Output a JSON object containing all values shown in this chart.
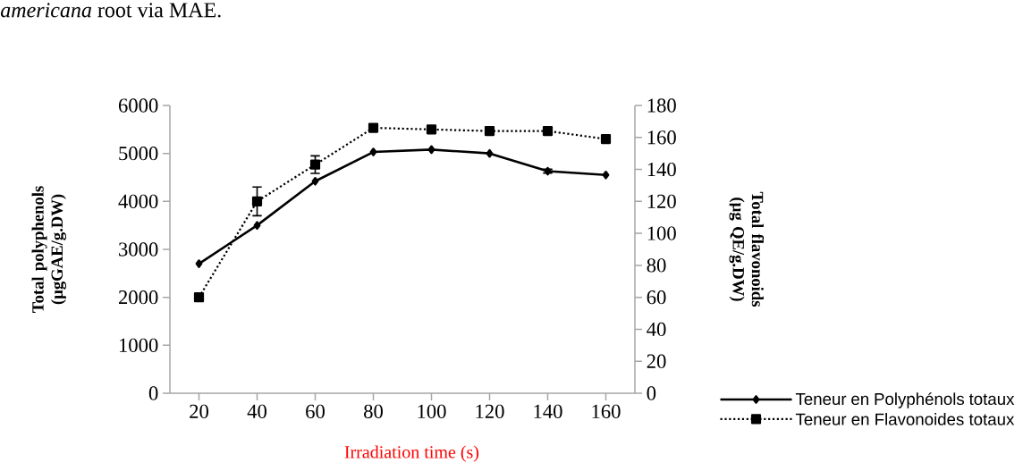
{
  "chart_data": {
    "type": "line",
    "xlabel": "Irradiation time (s)",
    "ylabel": "Total polyphenols (µgGAE/g.DW)",
    "y2label": "Total flavonoids (µg QE/g.DW)",
    "annotations": [
      "*americana* root via MAE."
    ],
    "categories": [
      "20",
      "40",
      "60",
      "80",
      "100",
      "120",
      "140",
      "160"
    ],
    "series": [
      {
        "name": "Teneur en Polyphénols totaux",
        "color": "#000000",
        "marker": "diamond",
        "line_style": "solid",
        "values": [
          2700,
          3500,
          4420,
          5030,
          5080,
          5000,
          4630,
          4550
        ],
        "errors": [
          null,
          null,
          null,
          null,
          null,
          null,
          40,
          null
        ]
      },
      {
        "name": "Teneur en Flavonoides totaux",
        "color": "#000000",
        "marker": "square",
        "line_style": "dotted",
        "axis": "y2",
        "values": [
          60,
          120,
          143,
          166,
          165,
          164,
          164,
          159
        ],
        "errors": [
          null,
          9,
          5.5,
          null,
          null,
          null,
          null,
          null
        ]
      }
    ],
    "ylim": [
      0,
      6000
    ],
    "yticks": [
      0,
      1000,
      2000,
      3000,
      4000,
      5000,
      6000
    ],
    "y2lim": [
      0,
      180
    ],
    "y2ticks": [
      0,
      20,
      40,
      60,
      80,
      100,
      120,
      140,
      160,
      180
    ],
    "legend": "bottom right"
  }
}
